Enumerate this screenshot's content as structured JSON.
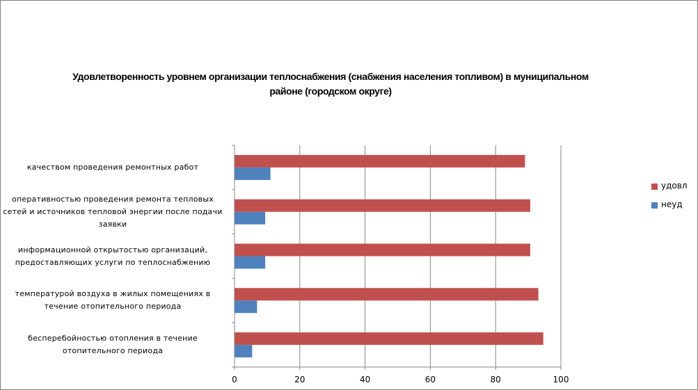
{
  "chart_data": {
    "type": "bar",
    "orientation": "horizontal",
    "title": "Удовлетворенность уровнем организации теплоснабжения (снабжения населения топливом) в муниципальном районе (городском округе)",
    "categories": [
      "качеством проведения ремонтных работ",
      "оперативностью проведения ремонта тепловых сетей и источников тепловой энергии после подачи заявки",
      "информационной открытостью организаций, предоставляющих услуги по теплоснабжению",
      "температурой воздуха в жилых помещениях в течение отопительного периода",
      "бесперебойностью отопления в течение отопительного периода"
    ],
    "series": [
      {
        "name": "удовл",
        "color": "#c0504d",
        "values": [
          89,
          90.6,
          90.6,
          93.1,
          94.6
        ]
      },
      {
        "name": "неуд",
        "color": "#4f81bd",
        "values": [
          11,
          9.4,
          9.4,
          6.9,
          5.4
        ]
      }
    ],
    "xlim": [
      0,
      100
    ],
    "xticks": [
      "0",
      "20",
      "40",
      "60",
      "80",
      "100"
    ],
    "grid": true,
    "legend_position": "right"
  }
}
